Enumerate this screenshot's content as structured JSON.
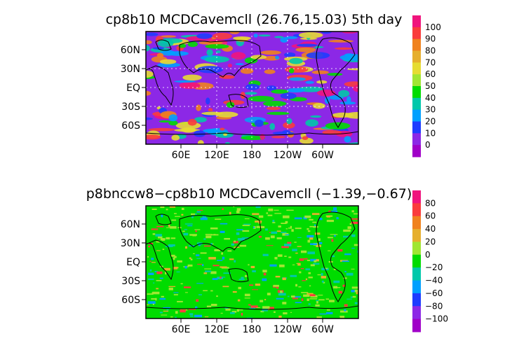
{
  "panels": [
    {
      "title": "cp8b10  MCDCavemcll (26.76,15.03) 5th day",
      "lon_ticks": [
        "60E",
        "120E",
        "180",
        "120W",
        "60W"
      ],
      "lat_ticks": [
        "60N",
        "30N",
        "EQ",
        "30S",
        "60S"
      ],
      "colorbar": {
        "labels": [
          "100",
          "90",
          "80",
          "70",
          "60",
          "50",
          "40",
          "30",
          "20",
          "10",
          "0"
        ],
        "colors": [
          "#f0147d",
          "#fa3c3c",
          "#f0821e",
          "#e6af2d",
          "#e6dc32",
          "#a0e632",
          "#00dc00",
          "#00c8aa",
          "#00a0ff",
          "#1e3cff",
          "#8c28e6",
          "#a000c8"
        ]
      }
    },
    {
      "title": "p8bnccw8−cp8b10  MCDCavemcll (−1.39,−0.67)",
      "lon_ticks": [
        "60E",
        "120E",
        "180",
        "120W",
        "60W"
      ],
      "lat_ticks": [
        "60N",
        "30N",
        "EQ",
        "30S",
        "60S"
      ],
      "colorbar": {
        "labels": [
          "80",
          "60",
          "40",
          "20",
          "0",
          "−20",
          "−40",
          "−60",
          "−80",
          "−100"
        ],
        "colors": [
          "#f0147d",
          "#fa3c3c",
          "#f0821e",
          "#e6af2d",
          "#a0e632",
          "#00dc00",
          "#00c8aa",
          "#00a0ff",
          "#1e3cff",
          "#8c28e6",
          "#a000c8"
        ]
      }
    }
  ]
}
